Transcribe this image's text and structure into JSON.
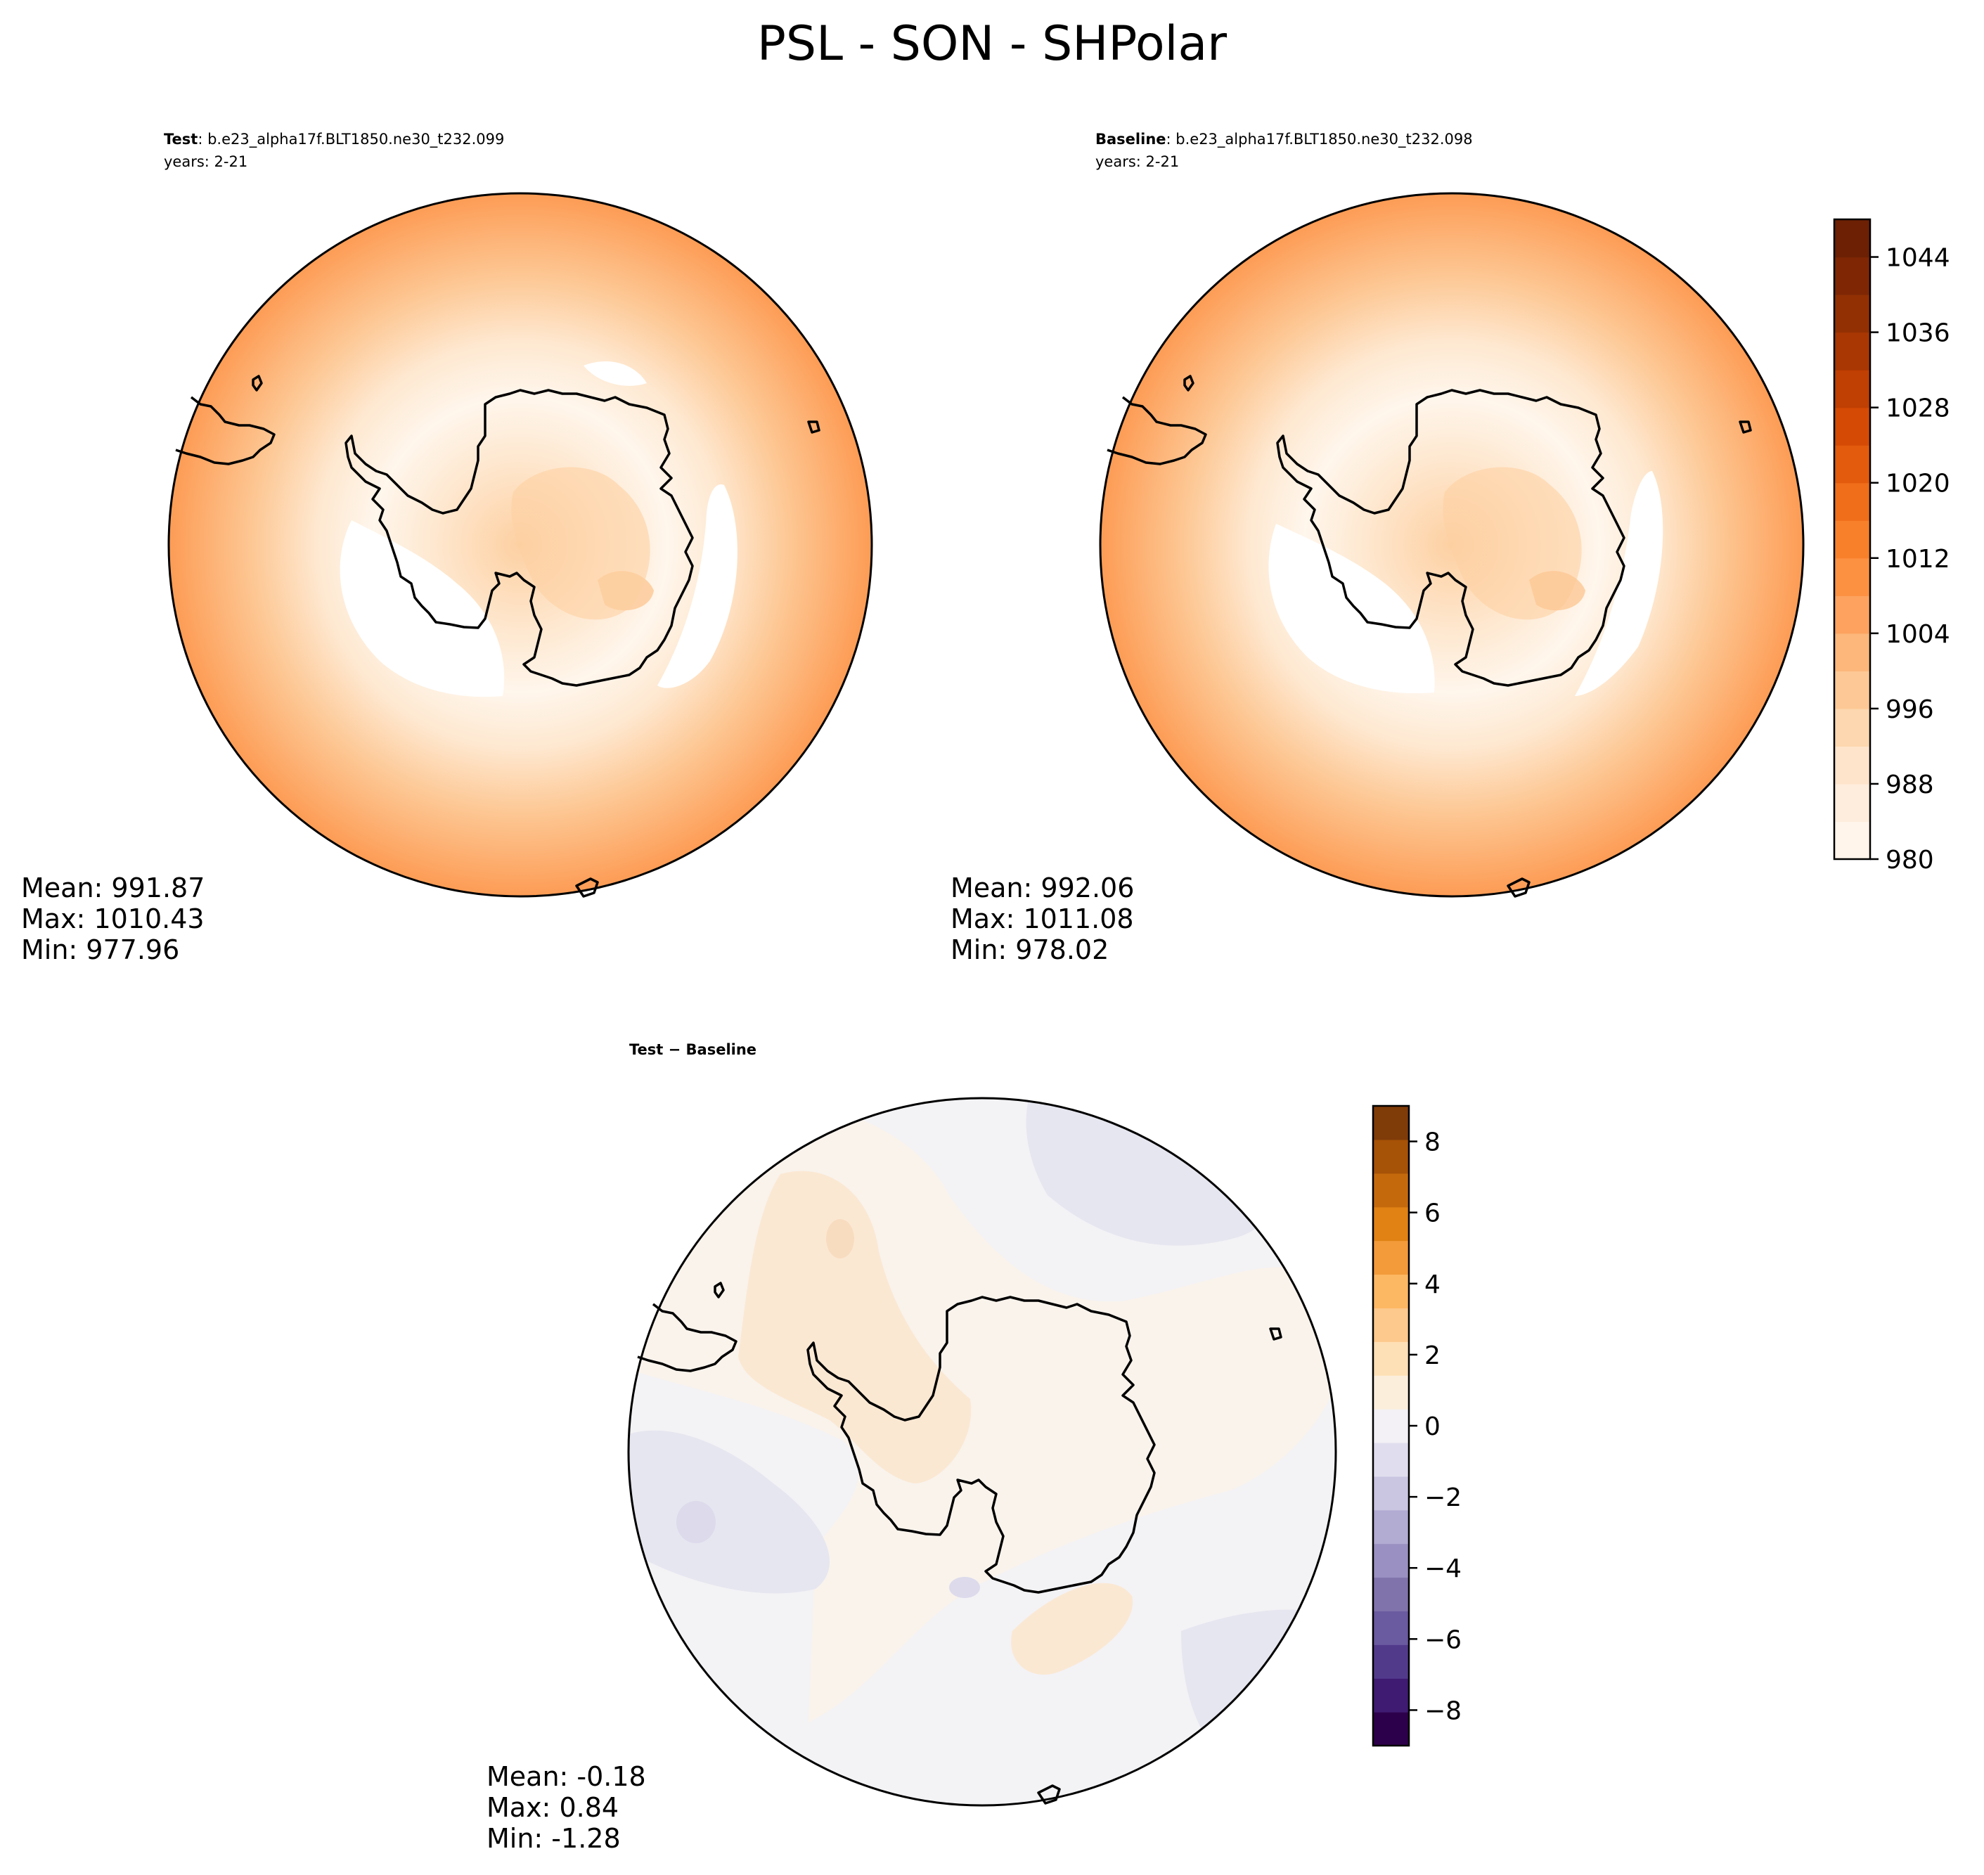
{
  "title": "PSL - SON - SHPolar",
  "chart_data": [
    {
      "type": "contourf",
      "projection": "south polar stereographic",
      "subtitle_bold": "Test",
      "subtitle_case": ": b.e23_alpha17f.BLT1850.ne30_t232.099",
      "subtitle_years": "years: 2-21",
      "stats": {
        "mean": "Mean: 991.87",
        "max": "Max: 1010.43",
        "min": "Min: 977.96"
      },
      "colormap": "Oranges",
      "levels": [
        980,
        984,
        988,
        992,
        996,
        1000,
        1004,
        1008,
        1012,
        1016,
        1020,
        1024,
        1028,
        1032,
        1036,
        1040,
        1044,
        1048
      ],
      "approx_field": {
        "description": "sea level pressure (hPa), zonal rings",
        "latitude_ring_values": [
          {
            "lat": -90,
            "value": 1002
          },
          {
            "lat": -80,
            "value": 999
          },
          {
            "lat": -70,
            "value": 988
          },
          {
            "lat": -65,
            "value": 980
          },
          {
            "lat": -60,
            "value": 983
          },
          {
            "lat": -55,
            "value": 990
          },
          {
            "lat": -50,
            "value": 996
          },
          {
            "lat": -45,
            "value": 1002
          },
          {
            "lat": -40,
            "value": 1008
          }
        ]
      }
    },
    {
      "type": "contourf",
      "projection": "south polar stereographic",
      "subtitle_bold": "Baseline",
      "subtitle_case": ": b.e23_alpha17f.BLT1850.ne30_t232.098",
      "subtitle_years": "years: 2-21",
      "stats": {
        "mean": "Mean: 992.06",
        "max": "Max: 1011.08",
        "min": "Min: 978.02"
      },
      "colormap": "Oranges",
      "levels": [
        980,
        984,
        988,
        992,
        996,
        1000,
        1004,
        1008,
        1012,
        1016,
        1020,
        1024,
        1028,
        1032,
        1036,
        1040,
        1044,
        1048
      ]
    },
    {
      "type": "contourf",
      "projection": "south polar stereographic",
      "subtitle_bold": "Test",
      "subtitle_rest": " − Baseline",
      "stats": {
        "mean": "Mean: -0.18",
        "max": "Max:  0.84",
        "min": "Min: -1.28"
      },
      "colormap": "PuOr_r",
      "levels": [
        -9,
        -8,
        -7,
        -6,
        -5,
        -4,
        -3,
        -2,
        -1,
        0,
        1,
        2,
        3,
        4,
        5,
        6,
        7,
        8,
        9
      ]
    }
  ],
  "colorbars": [
    {
      "ticks": [
        {
          "value": 980,
          "label": "980"
        },
        {
          "value": 988,
          "label": "988"
        },
        {
          "value": 996,
          "label": "996"
        },
        {
          "value": 1004,
          "label": "1004"
        },
        {
          "value": 1012,
          "label": "1012"
        },
        {
          "value": 1020,
          "label": "1020"
        },
        {
          "value": 1028,
          "label": "1028"
        },
        {
          "value": 1036,
          "label": "1036"
        },
        {
          "value": 1044,
          "label": "1044"
        }
      ],
      "range": [
        980,
        1048
      ],
      "colors": [
        "#fff5eb",
        "#feeddc",
        "#fee4ca",
        "#fdd7af",
        "#fdc895",
        "#fdb77a",
        "#fda35f",
        "#fd9142",
        "#f8802b",
        "#f06e1a",
        "#e35b0d",
        "#d54a04",
        "#c03f02",
        "#a93703",
        "#933003",
        "#7f2704",
        "#6d2004"
      ]
    },
    {
      "ticks": [
        {
          "value": -8,
          "label": "−8"
        },
        {
          "value": -6,
          "label": "−6"
        },
        {
          "value": -4,
          "label": "−4"
        },
        {
          "value": -2,
          "label": "−2"
        },
        {
          "value": 0,
          "label": "0"
        },
        {
          "value": 2,
          "label": "2"
        },
        {
          "value": 4,
          "label": "4"
        },
        {
          "value": 6,
          "label": "6"
        },
        {
          "value": 8,
          "label": "8"
        }
      ],
      "range": [
        -9,
        9
      ],
      "colors": [
        "#2d004b",
        "#3f1b72",
        "#523a8b",
        "#6a5aa0",
        "#8073ac",
        "#9a90c1",
        "#b2abd2",
        "#cac5e1",
        "#e0ddee",
        "#f3f1f5",
        "#fbeedb",
        "#fee0b6",
        "#fdc98c",
        "#fdb863",
        "#f39b3a",
        "#e08214",
        "#c56a0c",
        "#a65207",
        "#7f3b08"
      ]
    }
  ],
  "colors": {
    "coastline": "#000000",
    "background": "#ffffff"
  }
}
